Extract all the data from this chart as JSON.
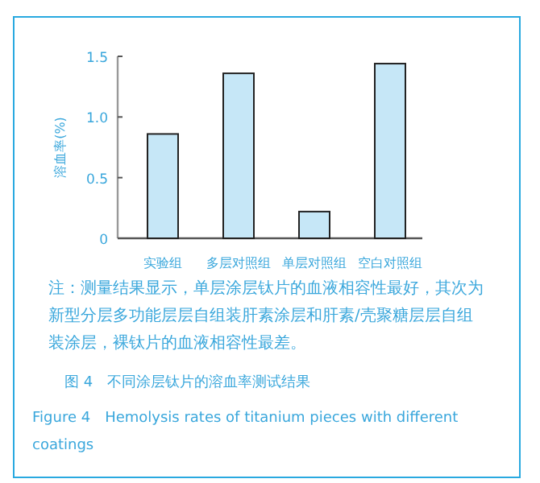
{
  "chart_data": {
    "type": "bar",
    "ylabel": "溶血率(%)",
    "categories": [
      "实验组",
      "多层对照组",
      "单层对照组",
      "空白对照组"
    ],
    "values": [
      0.86,
      1.36,
      0.22,
      1.44
    ],
    "color": "#c6e7f7",
    "ylim": [
      0,
      1.5
    ],
    "yticks": [
      0,
      {
        "value": 0.5,
        "label": "0.5"
      },
      {
        "value": 1,
        "label": "1.0"
      },
      {
        "value": 1.5,
        "label": "1.5"
      }
    ],
    "annotations": [
      "注：测量结果显示，单层涂层钛片的血液相容性最好，其次为新型分层多功能层层自组装肝素涂层和肝素/壳聚糖层层自组装涂层，裸钛片的血液相容性最差。",
      "图 4　不同涂层钛片的溶血率测试结果",
      "Figure 4　Hemolysis rates of titanium pieces with different coatings"
    ]
  }
}
